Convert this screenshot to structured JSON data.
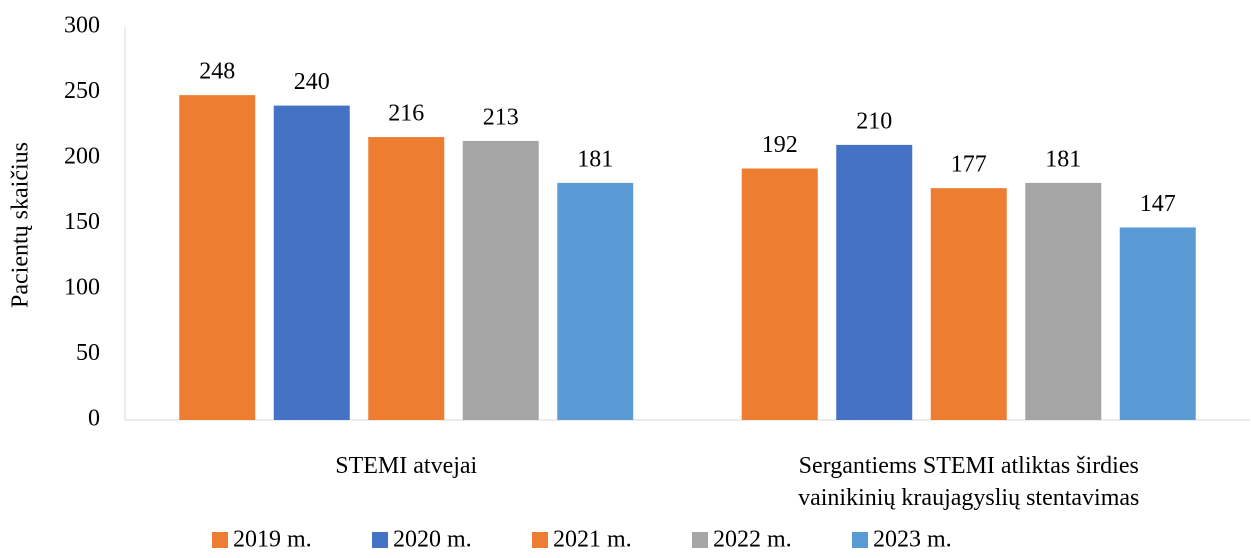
{
  "chart_data": {
    "type": "bar",
    "y_label": "Pacientų skaičius",
    "categories": [
      "STEMI atvejai",
      "Sergantiems STEMI atliktas širdies vainikinių kraujagyslių stentavimas"
    ],
    "series": [
      {
        "name": "2019 m.",
        "color": "#ed7d31",
        "values": [
          248,
          192
        ]
      },
      {
        "name": "2020 m.",
        "color": "#4472c4",
        "values": [
          240,
          210
        ]
      },
      {
        "name": "2021 m.",
        "color": "#ed7d31",
        "values": [
          216,
          177
        ]
      },
      {
        "name": "2022 m.",
        "color": "#a5a5a5",
        "values": [
          213,
          181
        ]
      },
      {
        "name": "2023 m.",
        "color": "#5b9bd5",
        "values": [
          181,
          147
        ]
      }
    ],
    "ylim": [
      0,
      300
    ],
    "yticks": [
      0,
      50,
      100,
      150,
      200,
      250,
      300
    ],
    "grid": false,
    "legend": "bottom"
  }
}
